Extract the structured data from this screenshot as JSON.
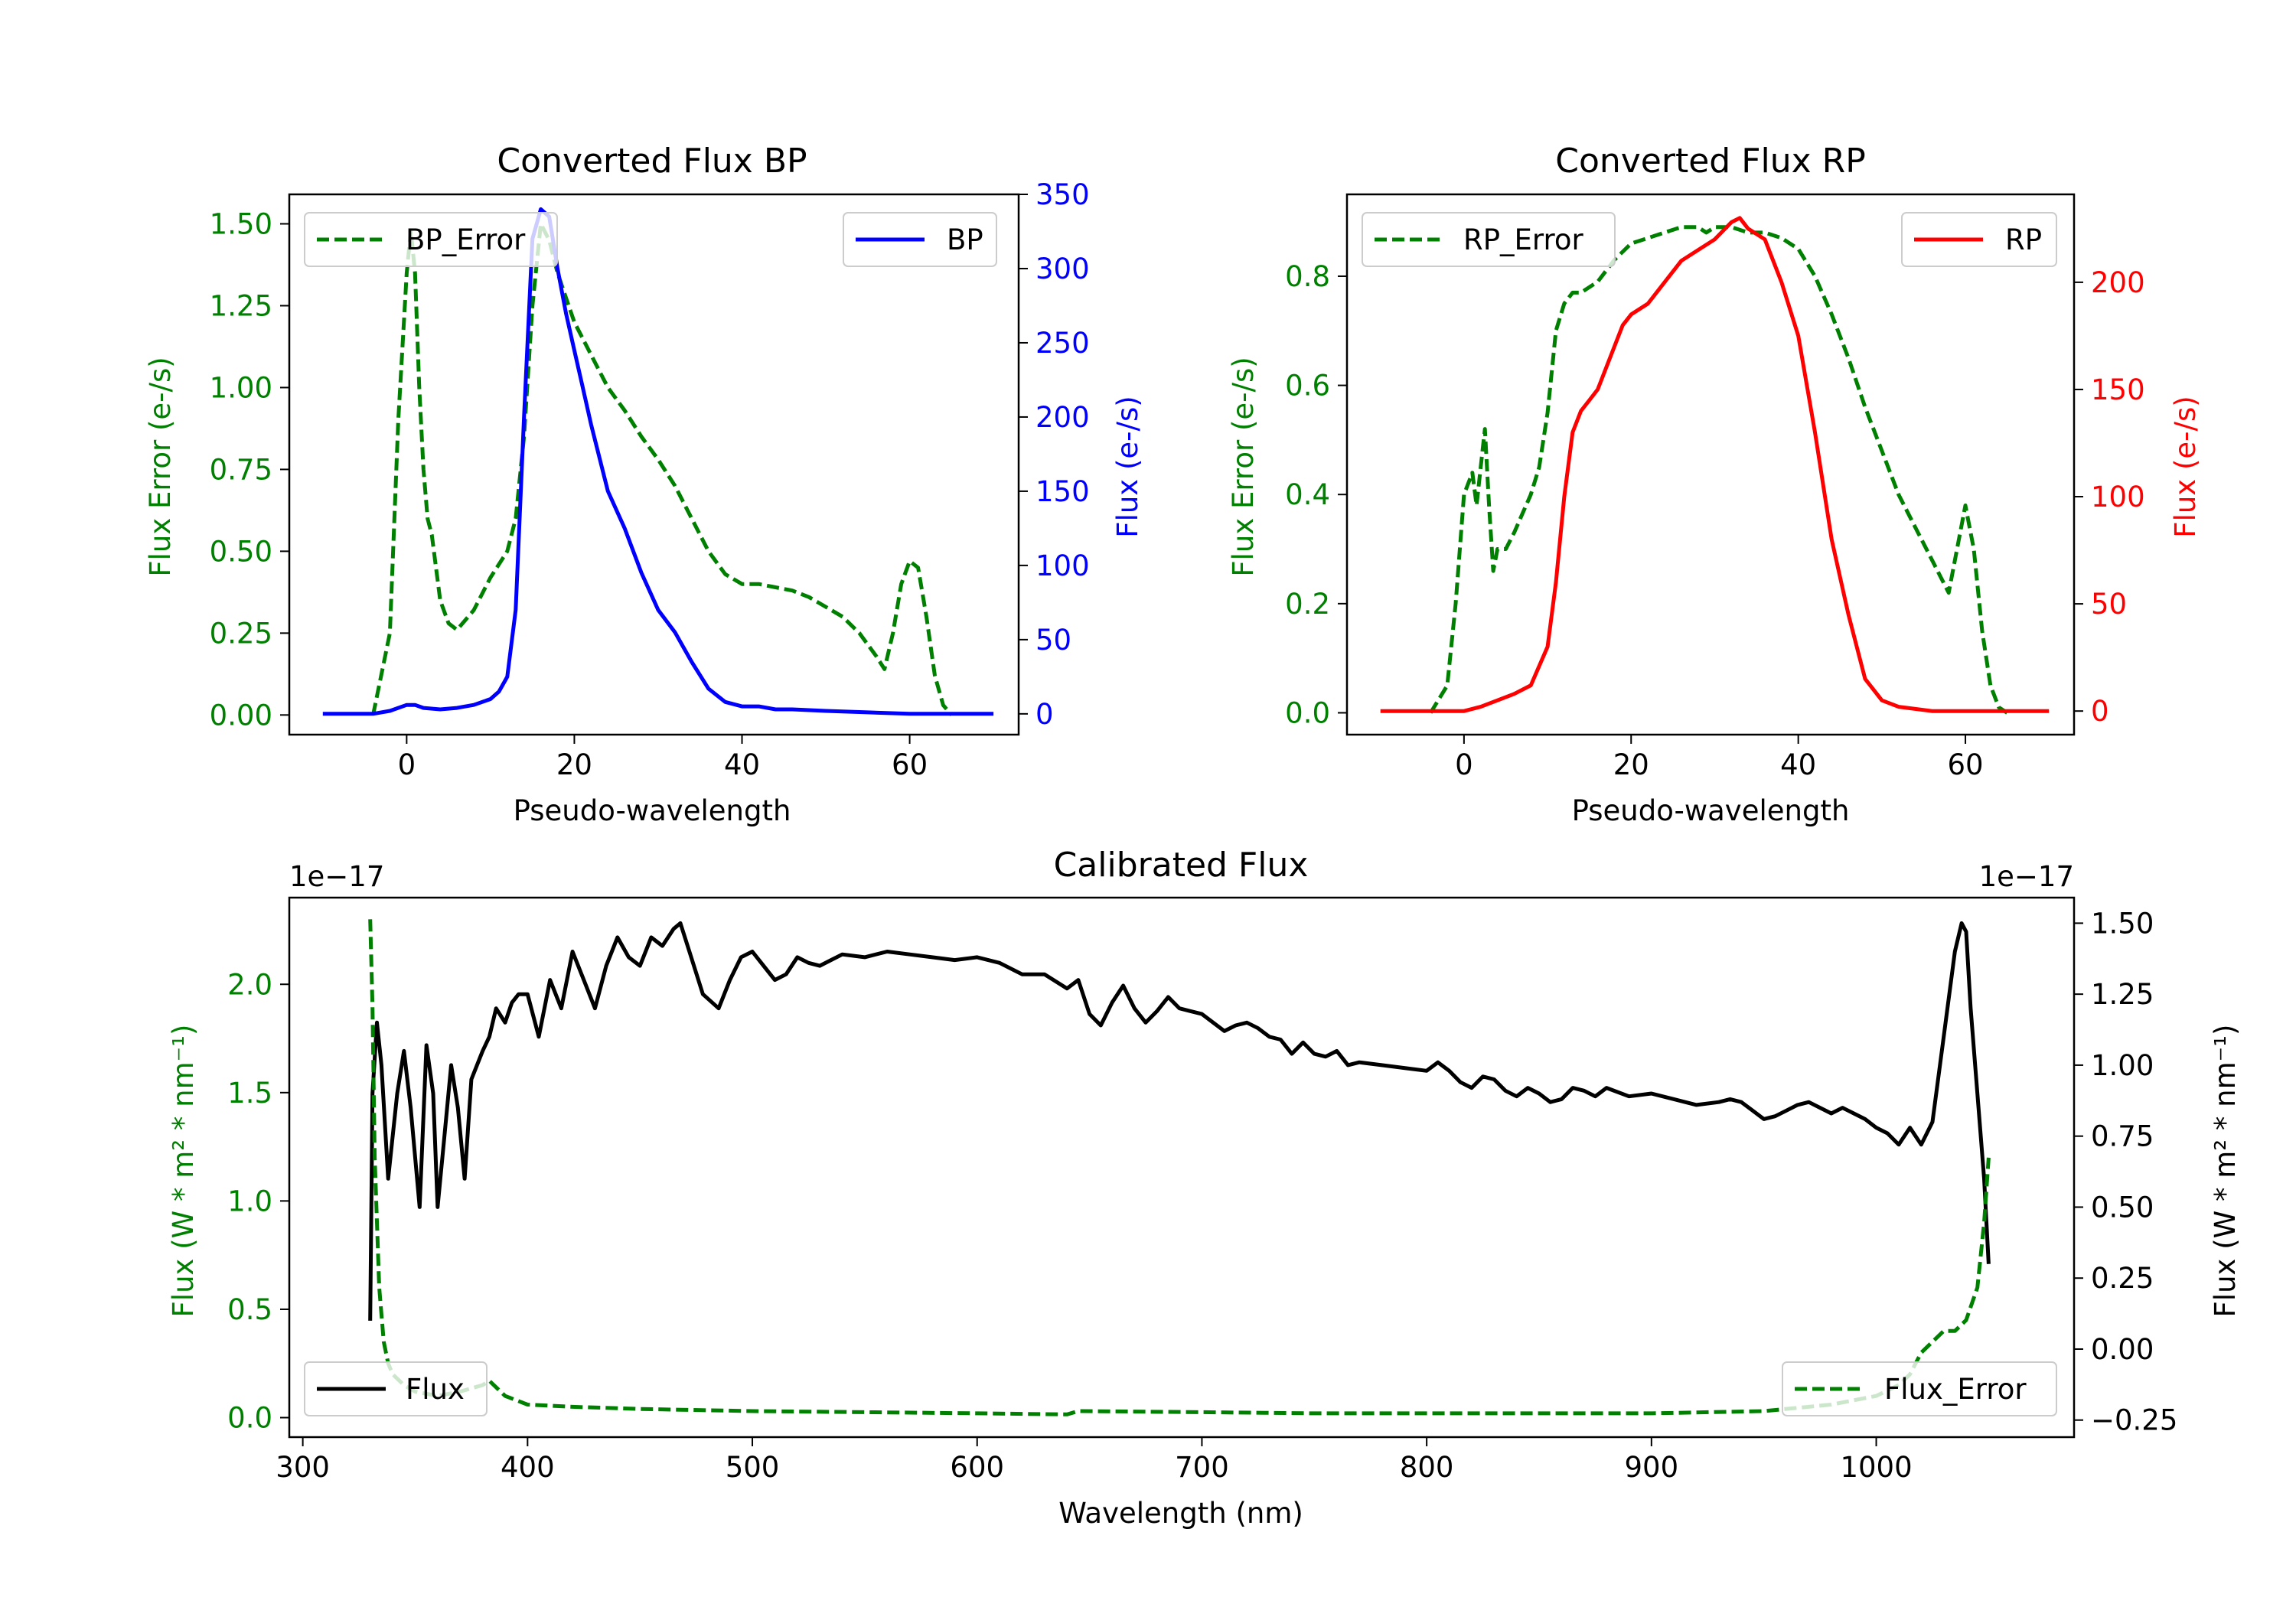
{
  "chart_data": [
    {
      "id": "bp",
      "type": "line",
      "title": "Converted Flux BP",
      "xlabel": "Pseudo-wavelength",
      "ylabel_left": "Flux Error (e-/s)",
      "ylabel_right": "Flux (e-/s)",
      "xlim": [
        -14,
        73
      ],
      "ylim_left": [
        -0.06,
        1.59
      ],
      "ylim_right": [
        -14,
        350
      ],
      "xticks": [
        0,
        20,
        40,
        60
      ],
      "xtick_labels": [
        "0",
        "20",
        "40",
        "60"
      ],
      "yticks_left": [
        0,
        0.25,
        0.5,
        0.75,
        1.0,
        1.25,
        1.5
      ],
      "ytick_labels_left": [
        "0.00",
        "0.25",
        "0.50",
        "0.75",
        "1.00",
        "1.25",
        "1.50"
      ],
      "yticks_right": [
        0,
        50,
        100,
        150,
        200,
        250,
        300,
        350
      ],
      "ytick_labels_right": [
        "0",
        "50",
        "100",
        "150",
        "200",
        "250",
        "300",
        "350"
      ],
      "left_color": "#008000",
      "right_color": "#0000ff",
      "series": [
        {
          "name": "BP_Error",
          "axis": "left",
          "color": "#008000",
          "style": "dashed",
          "x": [
            -4,
            -2,
            -1,
            0,
            0.5,
            1,
            1.5,
            2,
            2.5,
            3,
            3.5,
            4,
            5,
            6,
            8,
            10,
            12,
            13,
            14,
            15,
            16,
            17,
            18,
            20,
            22,
            24,
            26,
            28,
            30,
            32,
            34,
            36,
            38,
            40,
            42,
            44,
            46,
            48,
            50,
            52,
            54,
            56,
            57,
            58,
            59,
            60,
            61,
            62,
            63,
            64,
            65
          ],
          "y": [
            0.0,
            0.25,
            0.9,
            1.35,
            1.48,
            1.35,
            1.0,
            0.75,
            0.6,
            0.55,
            0.45,
            0.35,
            0.28,
            0.26,
            0.32,
            0.42,
            0.5,
            0.6,
            0.85,
            1.25,
            1.5,
            1.45,
            1.35,
            1.2,
            1.1,
            1.0,
            0.93,
            0.85,
            0.78,
            0.7,
            0.6,
            0.5,
            0.43,
            0.4,
            0.4,
            0.39,
            0.38,
            0.36,
            0.33,
            0.3,
            0.25,
            0.18,
            0.14,
            0.25,
            0.4,
            0.47,
            0.45,
            0.3,
            0.12,
            0.03,
            0.0
          ]
        },
        {
          "name": "BP",
          "axis": "right",
          "color": "#0000ff",
          "style": "solid",
          "x": [
            -10,
            -4,
            -2,
            0,
            1,
            2,
            4,
            6,
            8,
            10,
            11,
            12,
            13,
            14,
            15,
            16,
            17,
            18,
            19,
            20,
            21,
            22,
            24,
            26,
            28,
            30,
            32,
            34,
            36,
            38,
            40,
            42,
            44,
            46,
            50,
            55,
            60,
            65,
            70
          ],
          "y": [
            0,
            0,
            2,
            6,
            6,
            4,
            3,
            4,
            6,
            10,
            15,
            25,
            70,
            200,
            320,
            340,
            335,
            300,
            270,
            245,
            220,
            195,
            150,
            125,
            95,
            70,
            55,
            35,
            17,
            8,
            5,
            5,
            3,
            3,
            2,
            1,
            0,
            0,
            0
          ]
        }
      ],
      "legend_left": "upper-left",
      "legend_right": "upper-right"
    },
    {
      "id": "rp",
      "type": "line",
      "title": "Converted Flux RP",
      "xlabel": "Pseudo-wavelength",
      "ylabel_left": "Flux Error (e-/s)",
      "ylabel_right": "Flux (e-/s)",
      "xlim": [
        -14,
        73
      ],
      "ylim_left": [
        -0.04,
        0.95
      ],
      "ylim_right": [
        -11,
        241
      ],
      "xticks": [
        0,
        20,
        40,
        60
      ],
      "xtick_labels": [
        "0",
        "20",
        "40",
        "60"
      ],
      "yticks_left": [
        0,
        0.2,
        0.4,
        0.6,
        0.8
      ],
      "ytick_labels_left": [
        "0.0",
        "0.2",
        "0.4",
        "0.6",
        "0.8"
      ],
      "yticks_right": [
        0,
        50,
        100,
        150,
        200
      ],
      "ytick_labels_right": [
        "0",
        "50",
        "100",
        "150",
        "200"
      ],
      "left_color": "#008000",
      "right_color": "#ff0000",
      "series": [
        {
          "name": "RP_Error",
          "axis": "left",
          "color": "#008000",
          "style": "dashed",
          "x": [
            -4,
            -2,
            -1,
            0,
            1,
            1.5,
            2,
            2.5,
            3,
            3.5,
            4,
            5,
            6,
            8,
            9,
            10,
            11,
            12,
            13,
            14,
            16,
            18,
            20,
            22,
            24,
            26,
            28,
            29,
            30,
            32,
            34,
            36,
            38,
            40,
            42,
            44,
            46,
            48,
            50,
            52,
            54,
            56,
            57,
            58,
            59,
            60,
            61,
            62,
            63,
            64,
            65
          ],
          "y": [
            0.0,
            0.05,
            0.2,
            0.4,
            0.44,
            0.38,
            0.45,
            0.52,
            0.38,
            0.26,
            0.3,
            0.3,
            0.33,
            0.4,
            0.45,
            0.55,
            0.7,
            0.75,
            0.77,
            0.77,
            0.79,
            0.83,
            0.86,
            0.87,
            0.88,
            0.89,
            0.89,
            0.88,
            0.89,
            0.89,
            0.88,
            0.88,
            0.87,
            0.85,
            0.8,
            0.73,
            0.65,
            0.56,
            0.48,
            0.4,
            0.34,
            0.28,
            0.25,
            0.22,
            0.3,
            0.38,
            0.3,
            0.15,
            0.05,
            0.01,
            0.0
          ]
        },
        {
          "name": "RP",
          "axis": "right",
          "color": "#ff0000",
          "style": "solid",
          "x": [
            -10,
            0,
            2,
            4,
            6,
            8,
            10,
            11,
            12,
            13,
            14,
            15,
            16,
            17,
            18,
            19,
            20,
            22,
            24,
            26,
            28,
            30,
            32,
            33,
            34,
            36,
            38,
            40,
            42,
            44,
            46,
            48,
            50,
            52,
            54,
            56,
            60,
            65,
            70
          ],
          "y": [
            0,
            0,
            2,
            5,
            8,
            12,
            30,
            60,
            100,
            130,
            140,
            145,
            150,
            160,
            170,
            180,
            185,
            190,
            200,
            210,
            215,
            220,
            228,
            230,
            225,
            220,
            200,
            175,
            130,
            80,
            45,
            15,
            5,
            2,
            1,
            0,
            0,
            0,
            0
          ]
        }
      ],
      "legend_left": "upper-left",
      "legend_right": "upper-right"
    },
    {
      "id": "calibrated",
      "type": "line",
      "title": "Calibrated Flux",
      "xlabel": "Wavelength (nm)",
      "ylabel_left": "Flux (W * m² * nm⁻¹)",
      "ylabel_right": "Flux (W * m² * nm⁻¹)",
      "offset_left": "1e−17",
      "offset_right": "1e−17",
      "xlim": [
        294,
        1088
      ],
      "ylim_left": [
        -0.09,
        2.4
      ],
      "ylim_right": [
        -0.31,
        1.59
      ],
      "xticks": [
        300,
        400,
        500,
        600,
        700,
        800,
        900,
        1000
      ],
      "xtick_labels": [
        "300",
        "400",
        "500",
        "600",
        "700",
        "800",
        "900",
        "1000"
      ],
      "yticks_left": [
        0,
        0.5,
        1.0,
        1.5,
        2.0
      ],
      "ytick_labels_left": [
        "0.0",
        "0.5",
        "1.0",
        "1.5",
        "2.0"
      ],
      "yticks_right": [
        -0.25,
        0,
        0.25,
        0.5,
        0.75,
        1.0,
        1.25,
        1.5
      ],
      "ytick_labels_right": [
        "−0.25",
        "0.00",
        "0.25",
        "0.50",
        "0.75",
        "1.00",
        "1.25",
        "1.50"
      ],
      "left_color": "#008000",
      "right_color": "#000000",
      "series": [
        {
          "name": "Flux",
          "axis": "right",
          "color": "#000000",
          "style": "solid",
          "x": [
            330,
            331,
            333,
            335,
            338,
            342,
            345,
            348,
            352,
            355,
            358,
            360,
            363,
            366,
            369,
            372,
            375,
            380,
            383,
            386,
            390,
            393,
            396,
            400,
            405,
            410,
            415,
            420,
            425,
            430,
            435,
            440,
            445,
            450,
            455,
            460,
            465,
            468,
            472,
            478,
            485,
            490,
            495,
            500,
            505,
            510,
            515,
            520,
            525,
            530,
            535,
            540,
            550,
            560,
            570,
            580,
            590,
            600,
            610,
            620,
            630,
            640,
            645,
            650,
            655,
            660,
            665,
            670,
            675,
            680,
            685,
            690,
            695,
            700,
            705,
            710,
            715,
            720,
            725,
            730,
            735,
            740,
            745,
            750,
            755,
            760,
            765,
            770,
            780,
            790,
            800,
            805,
            810,
            815,
            820,
            825,
            830,
            835,
            840,
            845,
            850,
            855,
            860,
            865,
            870,
            875,
            880,
            890,
            900,
            910,
            920,
            930,
            935,
            940,
            945,
            950,
            955,
            960,
            965,
            970,
            975,
            980,
            985,
            990,
            995,
            1000,
            1005,
            1010,
            1015,
            1020,
            1025,
            1030,
            1035,
            1038,
            1040,
            1042,
            1045,
            1048,
            1050
          ],
          "y": [
            0.1,
            0.9,
            1.15,
            1.0,
            0.6,
            0.9,
            1.05,
            0.85,
            0.5,
            1.07,
            0.9,
            0.5,
            0.75,
            1.0,
            0.85,
            0.6,
            0.95,
            1.05,
            1.1,
            1.2,
            1.15,
            1.22,
            1.25,
            1.25,
            1.1,
            1.3,
            1.2,
            1.4,
            1.3,
            1.2,
            1.35,
            1.45,
            1.38,
            1.35,
            1.45,
            1.42,
            1.48,
            1.5,
            1.4,
            1.25,
            1.2,
            1.3,
            1.38,
            1.4,
            1.35,
            1.3,
            1.32,
            1.38,
            1.36,
            1.35,
            1.37,
            1.39,
            1.38,
            1.4,
            1.39,
            1.38,
            1.37,
            1.38,
            1.36,
            1.32,
            1.32,
            1.27,
            1.3,
            1.18,
            1.14,
            1.22,
            1.28,
            1.2,
            1.15,
            1.19,
            1.24,
            1.2,
            1.19,
            1.18,
            1.15,
            1.12,
            1.14,
            1.15,
            1.13,
            1.1,
            1.09,
            1.04,
            1.08,
            1.04,
            1.03,
            1.05,
            1.0,
            1.01,
            1.0,
            0.99,
            0.98,
            1.01,
            0.98,
            0.94,
            0.92,
            0.96,
            0.95,
            0.91,
            0.89,
            0.92,
            0.9,
            0.87,
            0.88,
            0.92,
            0.91,
            0.89,
            0.92,
            0.89,
            0.9,
            0.88,
            0.86,
            0.87,
            0.88,
            0.87,
            0.84,
            0.81,
            0.82,
            0.84,
            0.86,
            0.87,
            0.85,
            0.83,
            0.85,
            0.83,
            0.81,
            0.78,
            0.76,
            0.72,
            0.78,
            0.72,
            0.8,
            1.1,
            1.4,
            1.5,
            1.47,
            1.2,
            0.9,
            0.6,
            0.3
          ]
        },
        {
          "name": "Flux_Error",
          "axis": "left",
          "color": "#008000",
          "style": "dashed",
          "x": [
            330,
            331,
            332,
            334,
            336,
            338,
            340,
            345,
            350,
            360,
            370,
            380,
            383,
            390,
            400,
            420,
            450,
            500,
            550,
            600,
            640,
            645,
            700,
            750,
            800,
            850,
            900,
            950,
            980,
            1000,
            1010,
            1015,
            1020,
            1025,
            1030,
            1035,
            1040,
            1045,
            1048,
            1050
          ],
          "y": [
            2.3,
            1.9,
            1.2,
            0.6,
            0.35,
            0.25,
            0.2,
            0.15,
            0.12,
            0.1,
            0.12,
            0.15,
            0.17,
            0.1,
            0.06,
            0.05,
            0.04,
            0.03,
            0.025,
            0.02,
            0.015,
            0.03,
            0.025,
            0.02,
            0.02,
            0.02,
            0.02,
            0.03,
            0.06,
            0.1,
            0.15,
            0.2,
            0.3,
            0.35,
            0.4,
            0.4,
            0.45,
            0.6,
            0.9,
            1.2
          ]
        }
      ],
      "legend_left": "lower-left",
      "legend_right": "lower-right"
    }
  ]
}
